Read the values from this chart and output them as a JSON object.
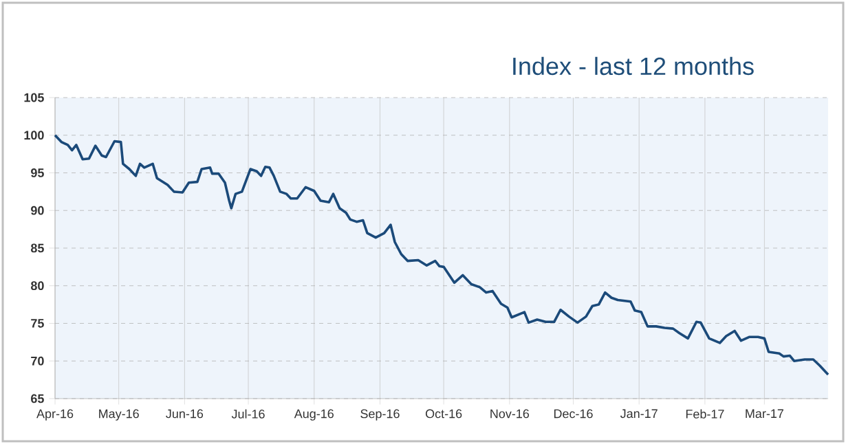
{
  "chart_data": {
    "type": "line",
    "title": "Index - last 12 months",
    "x": [
      "2016-04-01",
      "2016-04-04",
      "2016-04-07",
      "2016-04-09",
      "2016-04-11",
      "2016-04-14",
      "2016-04-17",
      "2016-04-20",
      "2016-04-23",
      "2016-04-25",
      "2016-04-29",
      "2016-05-02",
      "2016-05-03",
      "2016-05-06",
      "2016-05-09",
      "2016-05-11",
      "2016-05-13",
      "2016-05-17",
      "2016-05-19",
      "2016-05-24",
      "2016-05-27",
      "2016-05-31",
      "2016-06-03",
      "2016-06-07",
      "2016-06-09",
      "2016-06-13",
      "2016-06-14",
      "2016-06-17",
      "2016-06-20",
      "2016-06-22",
      "2016-06-23",
      "2016-06-25",
      "2016-06-28",
      "2016-07-02",
      "2016-07-05",
      "2016-07-07",
      "2016-07-09",
      "2016-07-11",
      "2016-07-13",
      "2016-07-16",
      "2016-07-19",
      "2016-07-21",
      "2016-07-24",
      "2016-07-28",
      "2016-08-01",
      "2016-08-04",
      "2016-08-08",
      "2016-08-10",
      "2016-08-13",
      "2016-08-16",
      "2016-08-18",
      "2016-08-21",
      "2016-08-24",
      "2016-08-26",
      "2016-08-30",
      "2016-09-03",
      "2016-09-06",
      "2016-09-08",
      "2016-09-11",
      "2016-09-14",
      "2016-09-19",
      "2016-09-23",
      "2016-09-27",
      "2016-09-29",
      "2016-10-01",
      "2016-10-06",
      "2016-10-10",
      "2016-10-14",
      "2016-10-18",
      "2016-10-21",
      "2016-10-24",
      "2016-10-28",
      "2016-10-31",
      "2016-11-02",
      "2016-11-08",
      "2016-11-10",
      "2016-11-14",
      "2016-11-18",
      "2016-11-22",
      "2016-11-25",
      "2016-11-29",
      "2016-12-03",
      "2016-12-07",
      "2016-12-10",
      "2016-12-13",
      "2016-12-16",
      "2016-12-19",
      "2016-12-22",
      "2016-12-28",
      "2016-12-30",
      "2017-01-02",
      "2017-01-05",
      "2017-01-09",
      "2017-01-13",
      "2017-01-17",
      "2017-01-20",
      "2017-01-24",
      "2017-01-28",
      "2017-01-30",
      "2017-02-03",
      "2017-02-08",
      "2017-02-11",
      "2017-02-15",
      "2017-02-18",
      "2017-02-22",
      "2017-02-26",
      "2017-03-01",
      "2017-03-03",
      "2017-03-08",
      "2017-03-10",
      "2017-03-13",
      "2017-03-15",
      "2017-03-20",
      "2017-03-24",
      "2017-03-27",
      "2017-03-31"
    ],
    "series": [
      {
        "color": "#1b4a7a",
        "values": [
          100,
          99.1,
          98.7,
          98.0,
          98.7,
          96.8,
          96.9,
          98.6,
          97.3,
          97.1,
          99.2,
          99.1,
          96.2,
          95.5,
          94.6,
          96.2,
          95.7,
          96.2,
          94.3,
          93.4,
          92.5,
          92.4,
          93.7,
          93.8,
          95.5,
          95.7,
          94.9,
          94.9,
          93.7,
          91.3,
          90.3,
          92.2,
          92.5,
          95.5,
          95.2,
          94.6,
          95.8,
          95.7,
          94.6,
          92.5,
          92.2,
          91.6,
          91.6,
          93.1,
          92.6,
          91.3,
          91.1,
          92.2,
          90.3,
          89.7,
          88.8,
          88.5,
          88.7,
          87.0,
          86.4,
          87.0,
          88.1,
          85.8,
          84.2,
          83.3,
          83.4,
          82.7,
          83.3,
          82.6,
          82.5,
          80.4,
          81.4,
          80.2,
          79.8,
          79.1,
          79.3,
          77.6,
          77.1,
          75.8,
          76.5,
          75.1,
          75.5,
          75.2,
          75.2,
          76.8,
          75.9,
          75.1,
          75.9,
          77.3,
          77.5,
          79.1,
          78.4,
          78.1,
          77.9,
          76.7,
          76.5,
          74.6,
          74.6,
          74.4,
          74.3,
          73.7,
          73.0,
          75.2,
          75.1,
          73.0,
          72.4,
          73.3,
          74.0,
          72.7,
          73.2,
          73.2,
          73.0,
          71.2,
          71.0,
          70.6,
          70.7,
          70.0,
          70.2,
          70.2,
          69.4,
          68.2
        ]
      }
    ],
    "xlim": [
      "2016-04-01",
      "2017-03-31"
    ],
    "xticks": [
      {
        "value": "2016-04-01",
        "label": "Apr-16"
      },
      {
        "value": "2016-05-01",
        "label": "May-16"
      },
      {
        "value": "2016-06-01",
        "label": "Jun-16"
      },
      {
        "value": "2016-07-01",
        "label": "Jul-16"
      },
      {
        "value": "2016-08-01",
        "label": "Aug-16"
      },
      {
        "value": "2016-09-01",
        "label": "Sep-16"
      },
      {
        "value": "2016-10-01",
        "label": "Oct-16"
      },
      {
        "value": "2016-11-01",
        "label": "Nov-16"
      },
      {
        "value": "2016-12-01",
        "label": "Dec-16"
      },
      {
        "value": "2017-01-01",
        "label": "Jan-17"
      },
      {
        "value": "2017-02-01",
        "label": "Feb-17"
      },
      {
        "value": "2017-03-01",
        "label": "Mar-17"
      }
    ],
    "ylim": [
      65,
      105
    ],
    "yticks": [
      65,
      70,
      75,
      80,
      85,
      90,
      95,
      100,
      105
    ],
    "grid": true,
    "marker": "none",
    "line_style": "solid"
  }
}
